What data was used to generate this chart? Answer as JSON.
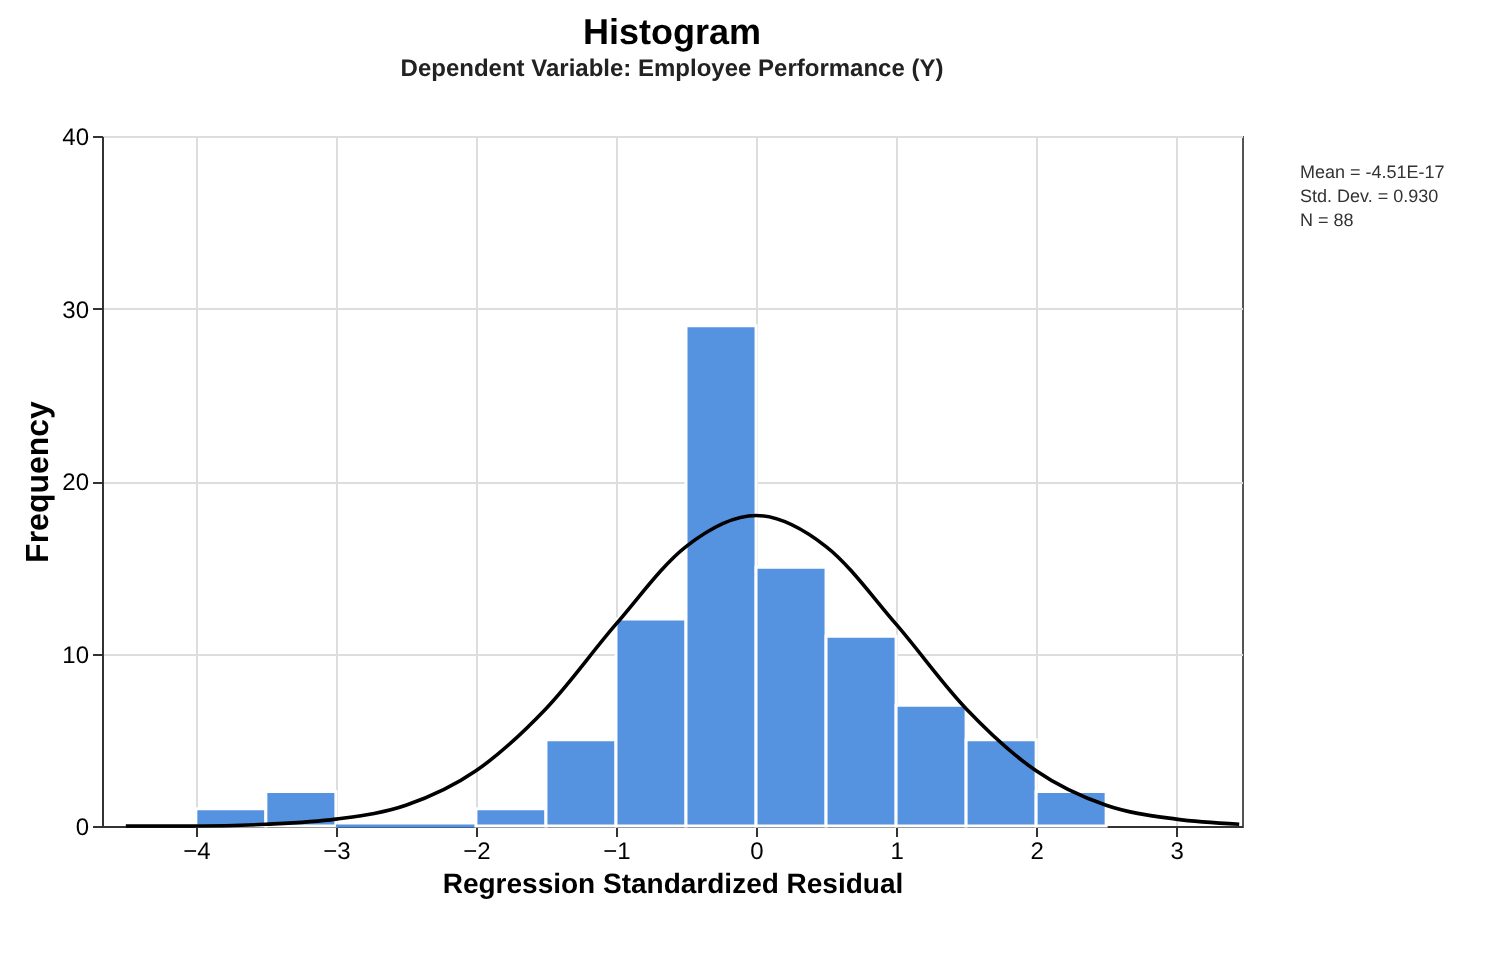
{
  "chart_data": {
    "type": "histogram",
    "title": "Histogram",
    "subtitle": "Dependent Variable: Employee Performance (Y)",
    "xlabel": "Regression Standardized Residual",
    "ylabel": "Frequency",
    "bins": [
      -4,
      -3.5,
      -3,
      -2.5,
      -2,
      -1.5,
      -1,
      -0.5,
      0,
      0.5,
      1,
      1.5,
      2,
      2.5
    ],
    "values": [
      1,
      2,
      0,
      0,
      1,
      5,
      12,
      29,
      15,
      11,
      7,
      5,
      2
    ],
    "color": "#5592e0",
    "series": [
      {
        "type": "line",
        "color": "#000000",
        "x": [
          -4.5,
          -4,
          -3.5,
          -3,
          -2.5,
          -2,
          -1.5,
          -1,
          -0.5,
          0,
          0.5,
          1,
          1.5,
          2,
          2.5,
          3,
          3.45
        ],
        "values": [
          0,
          0,
          0.1,
          0.4,
          1.2,
          3.2,
          6.8,
          11.7,
          16.2,
          18,
          16.2,
          11.7,
          6.8,
          3.2,
          1.2,
          0.4,
          0.1
        ]
      }
    ],
    "xlim": [
      -4.67,
      3.47
    ],
    "xticks": [
      -4,
      -3,
      -2,
      -1,
      0,
      1,
      2,
      3
    ],
    "ylim": [
      0,
      40
    ],
    "yticks": [
      0,
      10,
      20,
      30,
      40
    ],
    "grid": true,
    "annotations": [
      "Mean = -4.51E-17",
      "Std. Dev. = 0.930",
      "N = 88"
    ]
  }
}
